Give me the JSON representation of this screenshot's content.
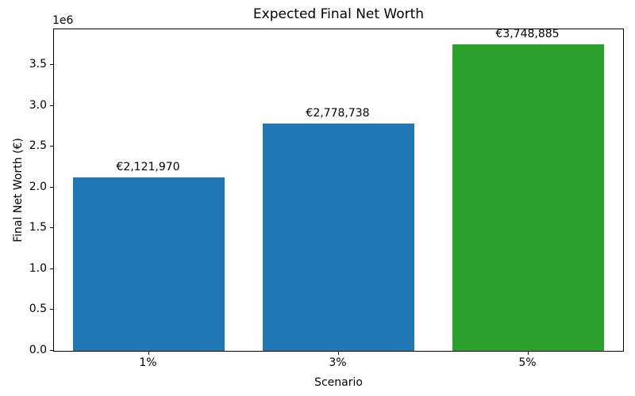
{
  "chart_data": {
    "type": "bar",
    "title": "Expected Final Net Worth",
    "xlabel": "Scenario",
    "ylabel": "Final Net Worth (€)",
    "categories": [
      "1%",
      "3%",
      "5%"
    ],
    "values": [
      2121970,
      2778738,
      3748885
    ],
    "bar_labels": [
      "€2,121,970",
      "€2,778,738",
      "€3,748,885"
    ],
    "bar_colors": [
      "#1f77b4",
      "#1f77b4",
      "#2ca02c"
    ],
    "ylim": [
      0,
      3936329
    ],
    "ytick_values": [
      0,
      500000,
      1000000,
      1500000,
      2000000,
      2500000,
      3000000,
      3500000
    ],
    "ytick_labels": [
      "0.0",
      "0.5",
      "1.0",
      "1.5",
      "2.0",
      "2.5",
      "3.0",
      "3.5"
    ],
    "y_offset_text": "1e6",
    "grid": false,
    "legend": null,
    "bar_width_frac": 0.8
  }
}
